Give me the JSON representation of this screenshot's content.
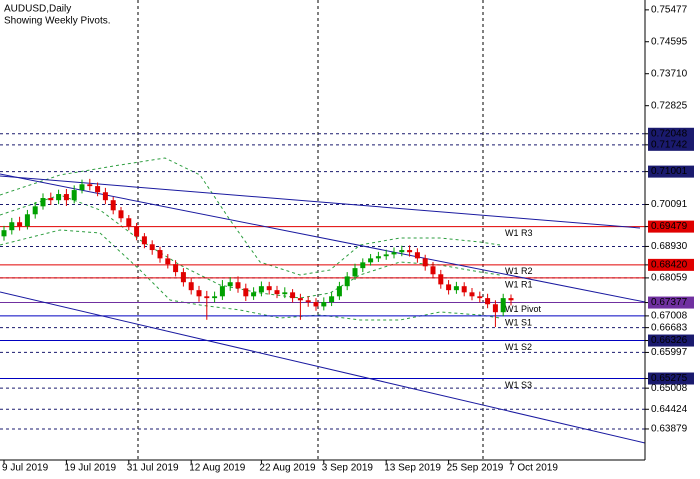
{
  "chart_data": {
    "type": "candlestick",
    "title": "AUDUSD,Daily",
    "subtitle": "Showing Weekly Pivots.",
    "up_color": "#00a000",
    "down_color": "#e00000",
    "ylim": [
      0.6302,
      0.7575
    ],
    "categories": [
      "9 Jul 2019",
      null,
      null,
      null,
      null,
      null,
      null,
      null,
      "19 Jul 2019",
      null,
      null,
      null,
      null,
      null,
      null,
      null,
      "31 Jul 2019",
      null,
      null,
      null,
      null,
      null,
      null,
      null,
      "12 Aug 2019",
      null,
      null,
      null,
      null,
      null,
      null,
      null,
      null,
      "22 Aug 2019",
      null,
      null,
      null,
      null,
      null,
      null,
      null,
      "3 Sep 2019",
      null,
      null,
      null,
      null,
      null,
      null,
      null,
      "13 Sep 2019",
      null,
      null,
      null,
      null,
      null,
      null,
      null,
      "25 Sep 2019",
      null,
      null,
      null,
      null,
      null,
      null,
      null,
      "7 Oct 2019"
    ],
    "open": [
      0.6921,
      0.6938,
      0.696,
      0.6949,
      0.6982,
      0.7004,
      0.7027,
      0.7021,
      0.7038,
      0.7021,
      0.7049,
      0.7065,
      0.706,
      0.7043,
      0.7021,
      0.6993,
      0.6971,
      0.6949,
      0.6921,
      0.6899,
      0.6883,
      0.686,
      0.6844,
      0.6822,
      0.6794,
      0.6772,
      0.6755,
      0.675,
      0.6755,
      0.6783,
      0.6794,
      0.6777,
      0.6755,
      0.6766,
      0.6783,
      0.6772,
      0.6761,
      0.6766,
      0.675,
      0.6744,
      0.6739,
      0.6727,
      0.6739,
      0.6755,
      0.6783,
      0.681,
      0.6833,
      0.6849,
      0.686,
      0.6866,
      0.6871,
      0.6877,
      0.6883,
      0.6877,
      0.686,
      0.6838,
      0.6816,
      0.6788,
      0.6772,
      0.6783,
      0.6766,
      0.6755,
      0.675,
      0.6733,
      0.6711,
      0.675
    ],
    "high": [
      0.695,
      0.6972,
      0.6975,
      0.6994,
      0.7016,
      0.704,
      0.7042,
      0.705,
      0.7052,
      0.7062,
      0.7078,
      0.708,
      0.707,
      0.7055,
      0.703,
      0.7002,
      0.698,
      0.6958,
      0.693,
      0.691,
      0.6892,
      0.6872,
      0.6855,
      0.6833,
      0.6805,
      0.6784,
      0.677,
      0.6768,
      0.68,
      0.6808,
      0.681,
      0.679,
      0.678,
      0.6796,
      0.6795,
      0.6784,
      0.678,
      0.6775,
      0.6762,
      0.6755,
      0.675,
      0.6752,
      0.6766,
      0.6795,
      0.6822,
      0.6845,
      0.686,
      0.6872,
      0.6878,
      0.6884,
      0.689,
      0.6895,
      0.6896,
      0.6888,
      0.687,
      0.685,
      0.6828,
      0.68,
      0.6795,
      0.6794,
      0.6778,
      0.6768,
      0.6762,
      0.6744,
      0.6762,
      0.676
    ],
    "low": [
      0.6909,
      0.6926,
      0.6937,
      0.694,
      0.697,
      0.6995,
      0.7008,
      0.701,
      0.7005,
      0.7012,
      0.704,
      0.7048,
      0.7032,
      0.701,
      0.6982,
      0.696,
      0.6938,
      0.691,
      0.6888,
      0.687,
      0.6848,
      0.6832,
      0.681,
      0.6782,
      0.676,
      0.674,
      0.669,
      0.6738,
      0.6745,
      0.677,
      0.6765,
      0.6742,
      0.6745,
      0.6755,
      0.676,
      0.675,
      0.675,
      0.6738,
      0.669,
      0.6726,
      0.6715,
      0.6716,
      0.6728,
      0.6745,
      0.6772,
      0.68,
      0.6822,
      0.684,
      0.685,
      0.6856,
      0.686,
      0.6866,
      0.6865,
      0.6848,
      0.6826,
      0.6805,
      0.6776,
      0.676,
      0.6762,
      0.6755,
      0.6744,
      0.6738,
      0.6722,
      0.667,
      0.67,
      0.673
    ],
    "close": [
      0.6938,
      0.696,
      0.6949,
      0.6982,
      0.7004,
      0.7027,
      0.7021,
      0.7038,
      0.7021,
      0.7049,
      0.7065,
      0.706,
      0.7043,
      0.7021,
      0.6993,
      0.6971,
      0.6949,
      0.6921,
      0.6899,
      0.6883,
      0.686,
      0.6844,
      0.6822,
      0.6794,
      0.6772,
      0.6755,
      0.675,
      0.6755,
      0.6783,
      0.6794,
      0.6777,
      0.6755,
      0.6766,
      0.6783,
      0.6772,
      0.6761,
      0.6766,
      0.675,
      0.6744,
      0.6739,
      0.6727,
      0.6739,
      0.6755,
      0.6783,
      0.681,
      0.6833,
      0.6849,
      0.686,
      0.6866,
      0.6871,
      0.6877,
      0.6883,
      0.6877,
      0.686,
      0.6838,
      0.6816,
      0.6788,
      0.6772,
      0.6783,
      0.6766,
      0.6755,
      0.675,
      0.6733,
      0.6711,
      0.675,
      0.6744
    ],
    "yticks": [
      {
        "value": 0.75477,
        "label": "0.75477"
      },
      {
        "value": 0.74595,
        "label": "0.74595"
      },
      {
        "value": 0.7371,
        "label": "0.73710"
      },
      {
        "value": 0.72825,
        "label": "0.72825"
      },
      {
        "value": 0.72048,
        "label": "0.72048",
        "box": "#1a1a6e",
        "line": "dash"
      },
      {
        "value": 0.71742,
        "label": "0.71742",
        "box": "#1a1a6e",
        "line": "dash"
      },
      {
        "value": 0.71001,
        "label": "0.71001",
        "box": "#1a1a6e",
        "line": "dash"
      },
      {
        "value": 0.70091,
        "label": "0.70091",
        "line": "dash"
      },
      {
        "value": 0.69479,
        "label": "0.69479",
        "box": "#e00000"
      },
      {
        "value": 0.6893,
        "label": "0.68930",
        "line": "dash"
      },
      {
        "value": 0.6842,
        "label": "0.68420",
        "box": "#e00000"
      },
      {
        "value": 0.68059,
        "label": "0.68059",
        "line": "dash"
      },
      {
        "value": 0.67377,
        "label": "0.67377",
        "box": "#7030a0"
      },
      {
        "value": 0.67008,
        "label": "0.67008"
      },
      {
        "value": 0.66683,
        "label": "0.66683",
        "line": "dash"
      },
      {
        "value": 0.66326,
        "label": "0.66326",
        "box": "#1a1a6e"
      },
      {
        "value": 0.65997,
        "label": "0.65997",
        "line": "dash"
      },
      {
        "value": 0.65275,
        "label": "0.65275",
        "box": "#1a1a6e"
      },
      {
        "value": 0.65008,
        "label": "0.65008",
        "line": "dash"
      },
      {
        "value": 0.64424,
        "label": "0.64424",
        "line": "dash"
      },
      {
        "value": 0.63879,
        "label": "0.63879",
        "line": "dash"
      }
    ],
    "pivots": [
      {
        "name": "W1 R3",
        "value": 0.69479,
        "color": "#e00000"
      },
      {
        "name": "W1 R2",
        "value": 0.6842,
        "color": "#e00000"
      },
      {
        "name": "W1 R1",
        "value": 0.68059,
        "color": "#e00000"
      },
      {
        "name": "W1 Pivot",
        "value": 0.67377,
        "color": "#7030a0"
      },
      {
        "name": "W1 S1",
        "value": 0.67008,
        "color": "#0000c0"
      },
      {
        "name": "W1 S2",
        "value": 0.66326,
        "color": "#0000c0"
      },
      {
        "name": "W1 S3",
        "value": 0.65275,
        "color": "#0000c0"
      }
    ]
  }
}
